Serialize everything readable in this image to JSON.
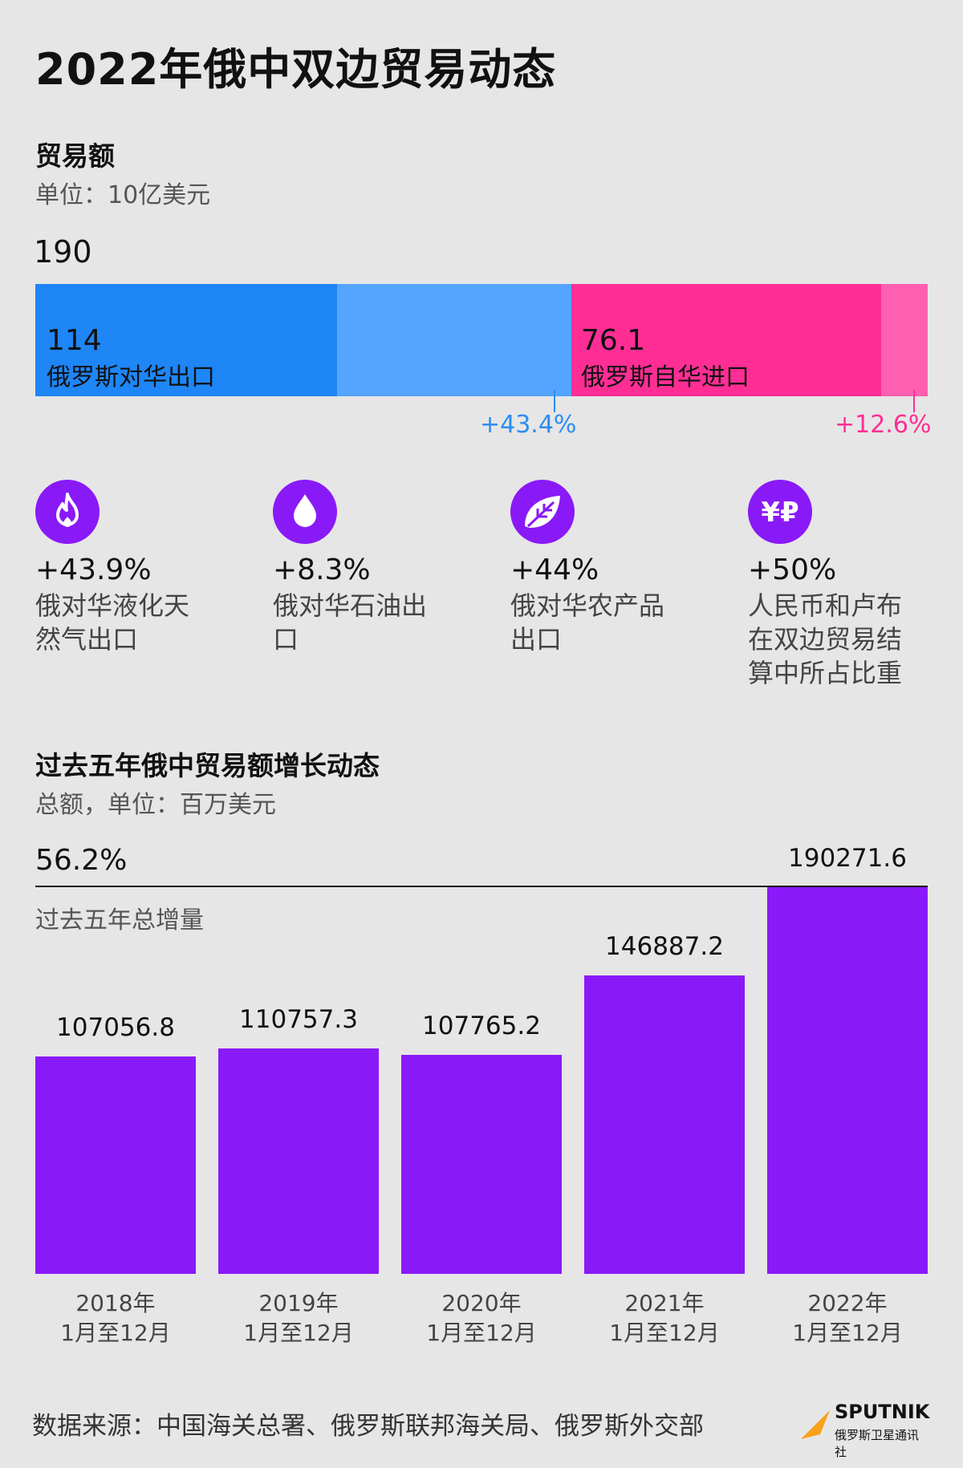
{
  "title": "2022年俄中双边贸易动态",
  "trade": {
    "heading": "贸易额",
    "unit": "单位：10亿美元",
    "total": "190",
    "export_value": "114",
    "export_label": "俄罗斯对华出口",
    "import_value": "76.1",
    "import_label": "俄罗斯自华进口",
    "export_growth": "+43.4%",
    "import_growth": "+12.6%"
  },
  "stats": [
    {
      "icon": "flame-icon",
      "pct": "+43.9%",
      "text": "俄对华液化天然气出口"
    },
    {
      "icon": "droplet-icon",
      "pct": "+8.3%",
      "text": "俄对华石油出口"
    },
    {
      "icon": "leaf-icon",
      "pct": "+44%",
      "text": "俄对华农产品出口"
    },
    {
      "icon": "yuan-ruble-icon",
      "pct": "+50%",
      "text": "人民币和卢布在双边贸易结算中所占比重"
    }
  ],
  "growth": {
    "heading": "过去五年俄中贸易额增长动态",
    "unit": "总额，单位：百万美元",
    "total_pct": "56.2%",
    "total_label": "过去五年总增量"
  },
  "chart_data": [
    {
      "type": "bar",
      "title": "贸易额",
      "ylabel": "单位：10亿美元",
      "categories": [
        "俄罗斯对华出口",
        "俄罗斯自华进口"
      ],
      "values": [
        114,
        76.1
      ],
      "total": 190,
      "growth_pct": [
        43.4,
        12.6
      ]
    },
    {
      "type": "bar",
      "title": "过去五年俄中贸易额增长动态",
      "ylabel": "总额，单位：百万美元",
      "categories": [
        "2018年 1月至12月",
        "2019年 1月至12月",
        "2020年 1月至12月",
        "2021年 1月至12月",
        "2022年 1月至12月"
      ],
      "values": [
        107056.8,
        110757.3,
        107765.2,
        146887.2,
        190271.6
      ],
      "value_labels": [
        "107056.8",
        "110757.3",
        "107765.2",
        "146887.2",
        "190271.6"
      ],
      "year_labels": [
        "2018年",
        "2019年",
        "2020年",
        "2021年",
        "2022年"
      ],
      "period_label": "1月至12月",
      "colors": {
        "bar": "#8a19f8"
      }
    }
  ],
  "colors": {
    "export_dark": "#1e86f6",
    "export_light": "#55a4ff",
    "import_dark": "#ff2e95",
    "import_light": "#ff5fb0",
    "accent_purple": "#8a19f8"
  },
  "footer": {
    "source": "数据来源：中国海关总署、俄罗斯联邦海关局、俄罗斯外交部",
    "brand": "SPUTNIK",
    "brand_sub": "俄罗斯卫星通讯社"
  }
}
